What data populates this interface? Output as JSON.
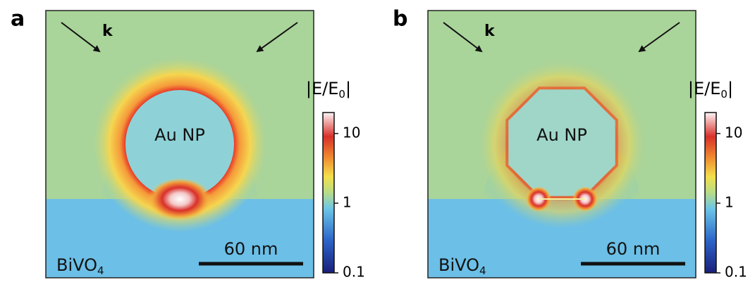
{
  "panels": [
    {
      "label": "a",
      "wavevector": "k",
      "particle": "Au NP",
      "substrate": {
        "text": "BiVO",
        "subscript": "4"
      },
      "scale_bar": "60 nm",
      "shape": "sphere"
    },
    {
      "label": "b",
      "wavevector": "k",
      "particle": "Au NP",
      "substrate": {
        "text": "BiVO",
        "subscript": "4"
      },
      "scale_bar": "60 nm",
      "shape": "octagon"
    }
  ],
  "colorbar": {
    "title": {
      "prefix": "|E/E",
      "subscript": "0",
      "suffix": "|"
    },
    "lim": [
      0.1,
      20
    ],
    "ticks": [
      0.1,
      1,
      10
    ],
    "log": true
  }
}
